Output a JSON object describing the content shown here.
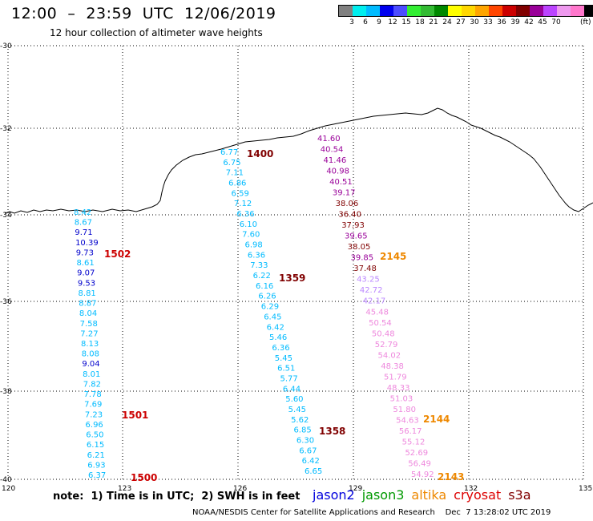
{
  "header": {
    "title": "12:00  –  23:59  UTC  12/06/2019",
    "subtitle": "12 hour collection of altimeter wave heights"
  },
  "legend": {
    "colors": [
      "#808080",
      "#00eeee",
      "#00bbff",
      "#0000ee",
      "#4c4cff",
      "#33ee33",
      "#33bb33",
      "#008800",
      "#ffff00",
      "#ffd700",
      "#ffa500",
      "#ff4500",
      "#cc0000",
      "#800000",
      "#990099",
      "#bb44ff",
      "#ee99ee",
      "#ff77cc",
      "#000000"
    ],
    "ticks": [
      "3",
      "6",
      "9",
      "12",
      "15",
      "18",
      "21",
      "24",
      "27",
      "30",
      "33",
      "36",
      "39",
      "42",
      "45",
      "70"
    ],
    "unit": "(ft)"
  },
  "map": {
    "lon_labels": [
      "120",
      "123",
      "126",
      "129",
      "132",
      "135"
    ],
    "lat_labels": [
      "-30",
      "-32",
      "-34",
      "-36",
      "-38",
      "-40"
    ]
  },
  "tracks": [
    {
      "color": "#0099dd",
      "points": [
        {
          "v": "8.42",
          "c": "#00bbff"
        },
        {
          "v": "8.67",
          "c": "#00bbff"
        },
        {
          "v": "9.71",
          "c": "#0000cc"
        },
        {
          "v": "10.39",
          "c": "#0000cc"
        },
        {
          "v": "9.73",
          "c": "#0000cc"
        },
        {
          "v": "8.61",
          "c": "#00bbff"
        },
        {
          "v": "9.07",
          "c": "#0000cc"
        },
        {
          "v": "9.53",
          "c": "#0000cc"
        },
        {
          "v": "8.81",
          "c": "#00bbff"
        },
        {
          "v": "8.87",
          "c": "#00bbff"
        },
        {
          "v": "8.04",
          "c": "#00bbff"
        },
        {
          "v": "7.58",
          "c": "#00bbff"
        },
        {
          "v": "7.27",
          "c": "#00bbff"
        },
        {
          "v": "8.13",
          "c": "#00bbff"
        },
        {
          "v": "8.08",
          "c": "#00bbff"
        },
        {
          "v": "9.04",
          "c": "#0000cc"
        },
        {
          "v": "8.01",
          "c": "#00bbff"
        },
        {
          "v": "7.82",
          "c": "#00bbff"
        },
        {
          "v": "7.78",
          "c": "#00bbff"
        },
        {
          "v": "7.69",
          "c": "#00bbff"
        },
        {
          "v": "7.23",
          "c": "#00bbff"
        },
        {
          "v": "6.96",
          "c": "#00bbff"
        },
        {
          "v": "6.50",
          "c": "#00bbff"
        },
        {
          "v": "6.15",
          "c": "#00bbff"
        },
        {
          "v": "6.21",
          "c": "#00bbff"
        },
        {
          "v": "6.93",
          "c": "#00bbff"
        },
        {
          "v": "6.37",
          "c": "#00bbff"
        }
      ]
    },
    {
      "color": "#00bbff",
      "points": [
        {
          "v": "6.77",
          "c": "#00bbff"
        },
        {
          "v": "6.75",
          "c": "#00bbff"
        },
        {
          "v": "7.11",
          "c": "#00bbff"
        },
        {
          "v": "6.86",
          "c": "#00bbff"
        },
        {
          "v": "6.59",
          "c": "#00bbff"
        },
        {
          "v": "7.12",
          "c": "#00bbff"
        },
        {
          "v": "6.36",
          "c": "#00bbff"
        },
        {
          "v": "6.10",
          "c": "#00bbff"
        },
        {
          "v": "7.60",
          "c": "#00bbff"
        },
        {
          "v": "6.98",
          "c": "#00bbff"
        },
        {
          "v": "6.36",
          "c": "#00bbff"
        },
        {
          "v": "7.33",
          "c": "#00bbff"
        },
        {
          "v": "6.22",
          "c": "#00bbff"
        },
        {
          "v": "6.16",
          "c": "#00bbff"
        },
        {
          "v": "6.26",
          "c": "#00bbff"
        },
        {
          "v": "6.29",
          "c": "#00bbff"
        },
        {
          "v": "6.45",
          "c": "#00bbff"
        },
        {
          "v": "6.42",
          "c": "#00bbff"
        },
        {
          "v": "5.46",
          "c": "#00bbff"
        },
        {
          "v": "6.36",
          "c": "#00bbff"
        },
        {
          "v": "5.45",
          "c": "#00bbff"
        },
        {
          "v": "6.51",
          "c": "#00bbff"
        },
        {
          "v": "5.77",
          "c": "#00bbff"
        },
        {
          "v": "6.44",
          "c": "#00bbff"
        },
        {
          "v": "5.60",
          "c": "#00bbff"
        },
        {
          "v": "5.45",
          "c": "#00bbff"
        },
        {
          "v": "5.62",
          "c": "#00bbff"
        },
        {
          "v": "6.85",
          "c": "#00bbff"
        },
        {
          "v": "6.30",
          "c": "#00bbff"
        },
        {
          "v": "6.67",
          "c": "#00bbff"
        },
        {
          "v": "6.42",
          "c": "#00bbff"
        },
        {
          "v": "6.65",
          "c": "#00bbff"
        }
      ]
    },
    {
      "color": "#990099",
      "points": [
        {
          "v": "41.60",
          "c": "#990099"
        },
        {
          "v": "40.54",
          "c": "#990099"
        },
        {
          "v": "41.46",
          "c": "#990099"
        },
        {
          "v": "40.98",
          "c": "#990099"
        },
        {
          "v": "40.51",
          "c": "#990099"
        },
        {
          "v": "39.17",
          "c": "#990099"
        },
        {
          "v": "38.06",
          "c": "#800000"
        },
        {
          "v": "36.40",
          "c": "#800000"
        },
        {
          "v": "37.93",
          "c": "#800000"
        },
        {
          "v": "39.65",
          "c": "#990099"
        },
        {
          "v": "38.05",
          "c": "#800000"
        },
        {
          "v": "39.85",
          "c": "#990099"
        },
        {
          "v": "37.48",
          "c": "#800000"
        },
        {
          "v": "43.25",
          "c": "#bb88ff"
        },
        {
          "v": "42.72",
          "c": "#bb88ff"
        },
        {
          "v": "42.17",
          "c": "#bb88ff"
        },
        {
          "v": "45.48",
          "c": "#ee88dd"
        },
        {
          "v": "50.54",
          "c": "#ee88dd"
        },
        {
          "v": "50.48",
          "c": "#ee88dd"
        },
        {
          "v": "52.79",
          "c": "#ee88dd"
        },
        {
          "v": "54.02",
          "c": "#ee88dd"
        },
        {
          "v": "48.38",
          "c": "#ee88dd"
        },
        {
          "v": "51.79",
          "c": "#ee88dd"
        },
        {
          "v": "48.33",
          "c": "#ee88dd"
        },
        {
          "v": "51.03",
          "c": "#ee88dd"
        },
        {
          "v": "51.80",
          "c": "#ee88dd"
        },
        {
          "v": "54.63",
          "c": "#ee88dd"
        },
        {
          "v": "56.17",
          "c": "#ee88dd"
        },
        {
          "v": "55.12",
          "c": "#ee88dd"
        },
        {
          "v": "52.69",
          "c": "#ee88dd"
        },
        {
          "v": "56.49",
          "c": "#ee88dd"
        },
        {
          "v": "54.92",
          "c": "#ee88dd"
        }
      ]
    }
  ],
  "time_labels": [
    {
      "text": "1400",
      "color": "#800000"
    },
    {
      "text": "1502",
      "color": "#cc0000"
    },
    {
      "text": "1359",
      "color": "#800000"
    },
    {
      "text": "2145",
      "color": "#ee8800"
    },
    {
      "text": "1501",
      "color": "#cc0000"
    },
    {
      "text": "2144",
      "color": "#ee8800"
    },
    {
      "text": "1358",
      "color": "#800000"
    },
    {
      "text": "1500",
      "color": "#cc0000"
    },
    {
      "text": "2143",
      "color": "#ee8800"
    }
  ],
  "footer": {
    "note": "note:  1) Time is in UTC;  2) SWH is in feet",
    "satellites": [
      {
        "name": "jason2",
        "color": "#0000dd"
      },
      {
        "name": "jason3",
        "color": "#009900"
      },
      {
        "name": "altika",
        "color": "#ee8800"
      },
      {
        "name": "cryosat",
        "color": "#dd0000"
      },
      {
        "name": "s3a",
        "color": "#800000"
      }
    ],
    "credit": "NOAA/NESDIS Center for Satellite Applications and Research    Dec  7 13:28:02 UTC 2019"
  }
}
